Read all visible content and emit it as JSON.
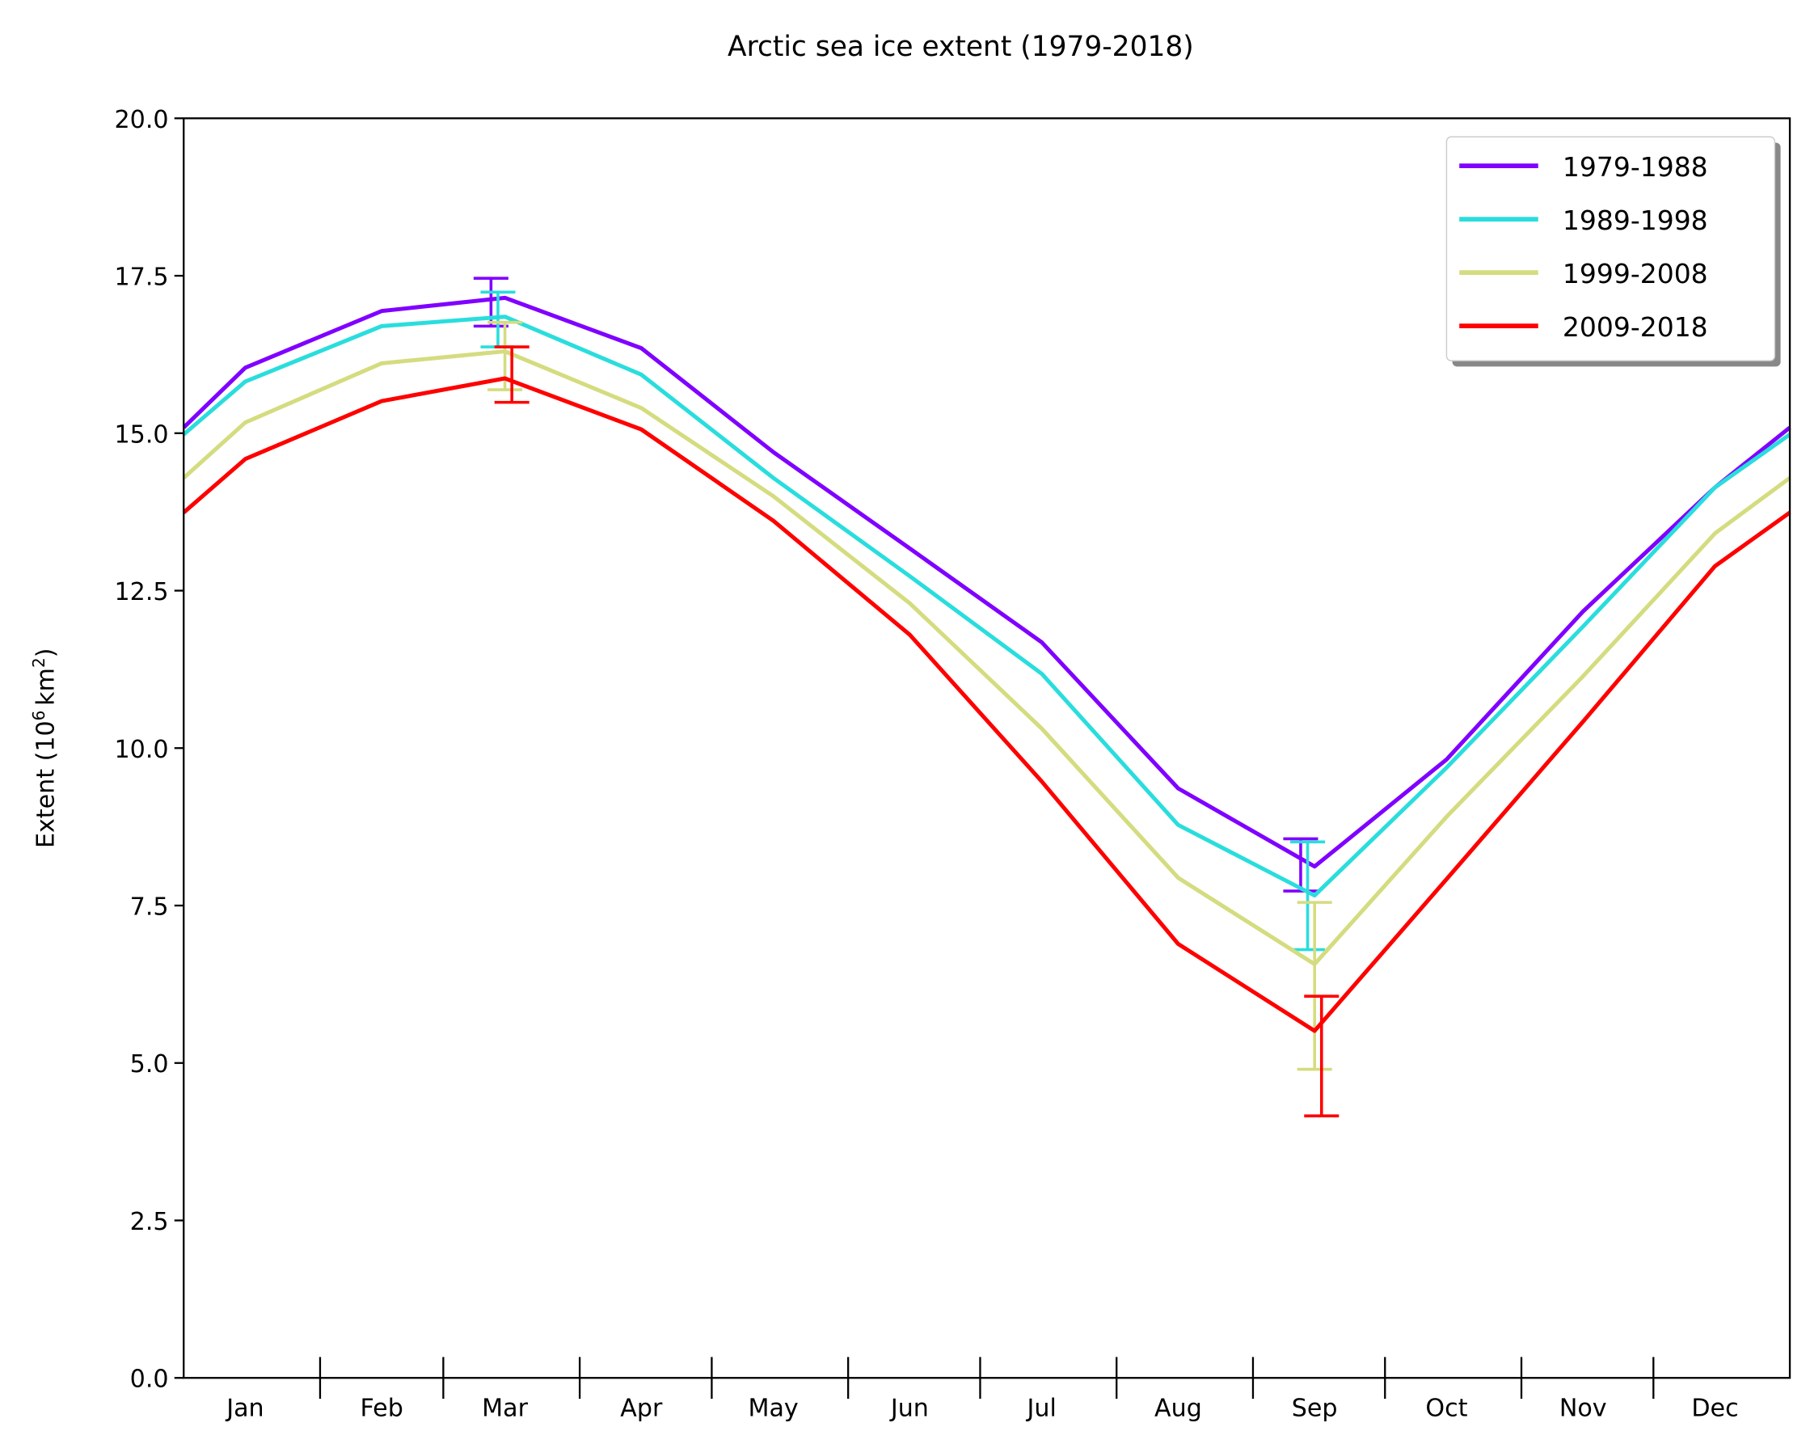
{
  "chart_data": {
    "type": "line",
    "title": "Arctic sea ice extent (1979-2018)",
    "xlabel": "",
    "ylabel": "Extent (10^6 km^2)",
    "ylabel_parts": {
      "prefix": "Extent (10",
      "sup1": "6",
      "mid": "km",
      "sup2": "2",
      "suffix": ")"
    },
    "ylim": [
      0,
      20
    ],
    "yticks": [
      "0.0",
      "2.5",
      "5.0",
      "7.5",
      "10.0",
      "12.5",
      "15.0",
      "17.5",
      "20.0"
    ],
    "categories": [
      "Jan",
      "Feb",
      "Mar",
      "Apr",
      "May",
      "Jun",
      "Jul",
      "Aug",
      "Sep",
      "Oct",
      "Nov",
      "Dec"
    ],
    "grid": false,
    "legend_position": "top-right",
    "series": [
      {
        "name": "1979-1988",
        "color": "#8000ff",
        "values": [
          16.04,
          16.94,
          17.15,
          16.35,
          14.7,
          13.17,
          11.68,
          9.36,
          8.12,
          9.82,
          12.17,
          14.14
        ],
        "error_bars": [
          {
            "month": "Mar",
            "low": 16.7,
            "high": 17.46
          },
          {
            "month": "Sep",
            "low": 7.73,
            "high": 8.56
          }
        ]
      },
      {
        "name": "1989-1998",
        "color": "#2adddd",
        "values": [
          15.82,
          16.7,
          16.85,
          15.93,
          14.29,
          12.73,
          11.18,
          8.78,
          7.66,
          9.69,
          11.93,
          14.14
        ],
        "error_bars": [
          {
            "month": "Mar",
            "low": 16.37,
            "high": 17.24
          },
          {
            "month": "Sep",
            "low": 6.8,
            "high": 8.51
          }
        ]
      },
      {
        "name": "1999-2008",
        "color": "#d4dc7f",
        "values": [
          15.17,
          16.11,
          16.3,
          15.4,
          14.0,
          12.3,
          10.31,
          7.94,
          6.57,
          8.91,
          11.14,
          13.41
        ],
        "error_bars": [
          {
            "month": "Mar",
            "low": 15.69,
            "high": 16.76
          },
          {
            "month": "Sep",
            "low": 4.9,
            "high": 7.55
          }
        ]
      },
      {
        "name": "2009-2018",
        "color": "#ff0000",
        "values": [
          14.59,
          15.51,
          15.87,
          15.06,
          13.61,
          11.8,
          9.47,
          6.89,
          5.51,
          7.92,
          10.42,
          12.89
        ],
        "error_bars": [
          {
            "month": "Mar",
            "low": 15.49,
            "high": 16.37
          },
          {
            "month": "Sep",
            "low": 4.16,
            "high": 6.06
          }
        ]
      }
    ]
  }
}
